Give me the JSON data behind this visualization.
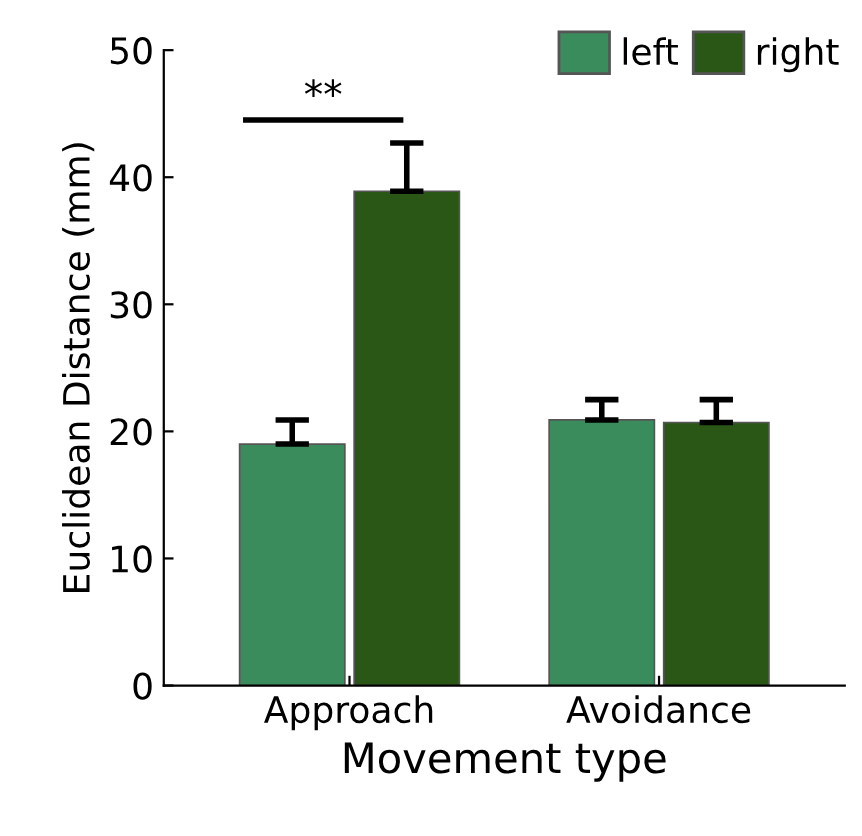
{
  "chart_data": {
    "type": "bar",
    "xlabel": "Movement type",
    "ylabel": "Euclidean Distance (mm)",
    "categories": [
      "Approach",
      "Avoidance"
    ],
    "series": [
      {
        "name": "left",
        "color": "#3a8c5c",
        "values": [
          19,
          20.9
        ],
        "errors": [
          [
            19,
            20.9
          ],
          [
            20.9,
            22.5
          ]
        ]
      },
      {
        "name": "right",
        "color": "#2b5716",
        "values": [
          38.9,
          20.7
        ],
        "errors": [
          [
            38.9,
            42.7
          ],
          [
            20.7,
            22.5
          ]
        ]
      }
    ],
    "ylim": [
      0,
      50
    ],
    "yticks": [
      0,
      10,
      20,
      30,
      40,
      50
    ],
    "grid": false,
    "legend": "top right",
    "annotations": [
      "**"
    ]
  }
}
